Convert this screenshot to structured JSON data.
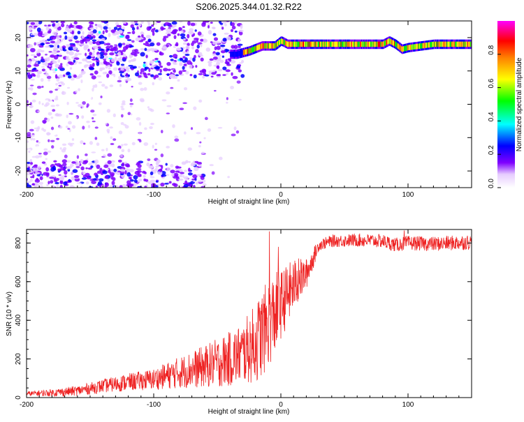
{
  "title": "S206.2025.344.01.32.R22",
  "chart_data": [
    {
      "type": "heatmap",
      "xlabel": "Height of straight line (km)",
      "ylabel": "Frequency (Hz)",
      "xlim": [
        -200,
        150
      ],
      "ylim": [
        -25,
        25
      ],
      "xticks": [
        -200,
        -100,
        0,
        100
      ],
      "yticks": [
        -20,
        -10,
        0,
        10,
        20
      ],
      "colorbar": {
        "label": "Normalized spectral amplitude",
        "range": [
          0,
          1
        ],
        "ticks": [
          "0.0",
          "0.2",
          "0.4",
          "0.6",
          "0.8"
        ],
        "colors": [
          "#ffffff",
          "#d9b3ff",
          "#7f00ff",
          "#0000ff",
          "#00ffff",
          "#00ff00",
          "#ffff00",
          "#ff8000",
          "#ff0000",
          "#ff00ff"
        ]
      },
      "ridge": {
        "x": [
          -35,
          -25,
          -15,
          -5,
          0,
          5,
          20,
          40,
          60,
          80,
          85,
          90,
          95,
          100,
          120,
          150
        ],
        "y": [
          15,
          16,
          17.5,
          17.5,
          19,
          18,
          18,
          18,
          18,
          18,
          19,
          18,
          16.5,
          17,
          18,
          18
        ],
        "peak_x": [
          -20,
          110
        ]
      }
    },
    {
      "type": "line",
      "xlabel": "Height of straight line (km)",
      "ylabel": "SNR (10 * v/v)",
      "xlim": [
        -200,
        150
      ],
      "ylim": [
        0,
        870
      ],
      "xticks": [
        -200,
        -100,
        0,
        100
      ],
      "yticks": [
        0,
        200,
        400,
        600,
        800
      ],
      "color": "#ee2222",
      "trend": {
        "x": [
          -200,
          -180,
          -160,
          -140,
          -120,
          -100,
          -80,
          -60,
          -40,
          -30,
          -20,
          -10,
          0,
          10,
          20,
          30,
          40,
          60,
          80,
          90,
          100,
          120,
          150
        ],
        "y": [
          20,
          25,
          35,
          60,
          80,
          95,
          130,
          160,
          200,
          230,
          280,
          380,
          480,
          580,
          640,
          790,
          810,
          815,
          810,
          790,
          800,
          795,
          805
        ]
      },
      "noise": {
        "x": [
          -200,
          -150,
          -100,
          -60,
          -30,
          -15,
          -5,
          0,
          10,
          20,
          30,
          60,
          150
        ],
        "amplitude": [
          12,
          30,
          55,
          110,
          160,
          230,
          220,
          180,
          140,
          80,
          30,
          35,
          40
        ]
      },
      "peaks": [
        {
          "x": -9,
          "y": 860
        },
        {
          "x": -2,
          "y": 780
        },
        {
          "x": 14,
          "y": 720
        },
        {
          "x": 97,
          "y": 865
        }
      ]
    }
  ]
}
